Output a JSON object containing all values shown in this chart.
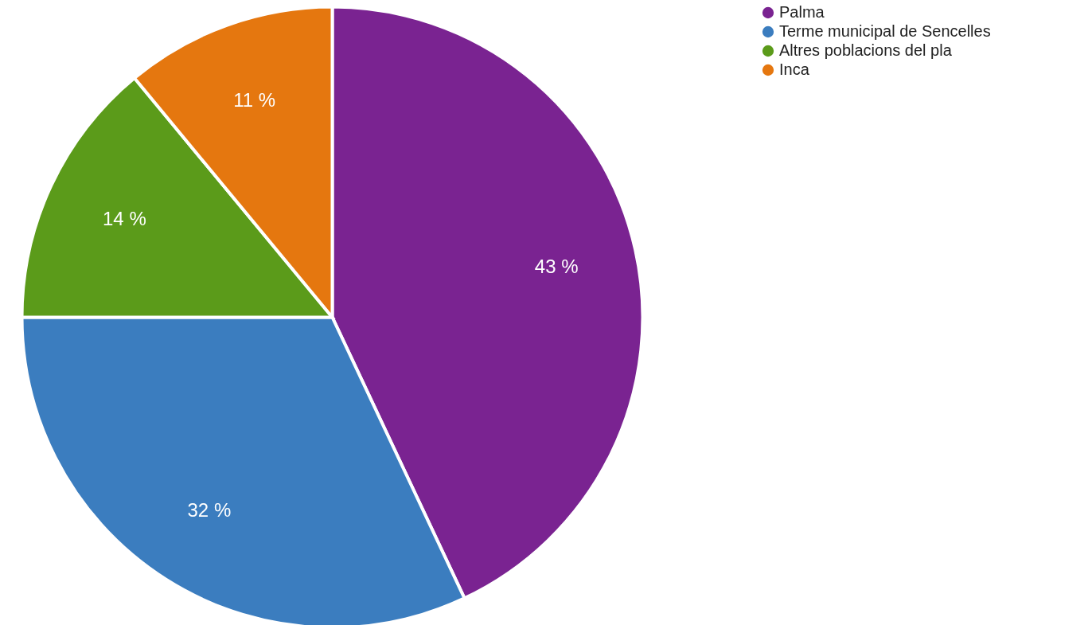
{
  "chart_data": {
    "type": "pie",
    "categories": [
      "Palma",
      "Terme municipal de Sencelles",
      "Altres poblacions del pla",
      "Inca"
    ],
    "values": [
      43,
      32,
      14,
      11
    ],
    "colors": [
      "#7a2391",
      "#3b7dbf",
      "#5b9b1a",
      "#e5770f"
    ],
    "value_labels": [
      "43 %",
      "32 %",
      "14 %",
      "11 %"
    ],
    "legend": "right"
  }
}
